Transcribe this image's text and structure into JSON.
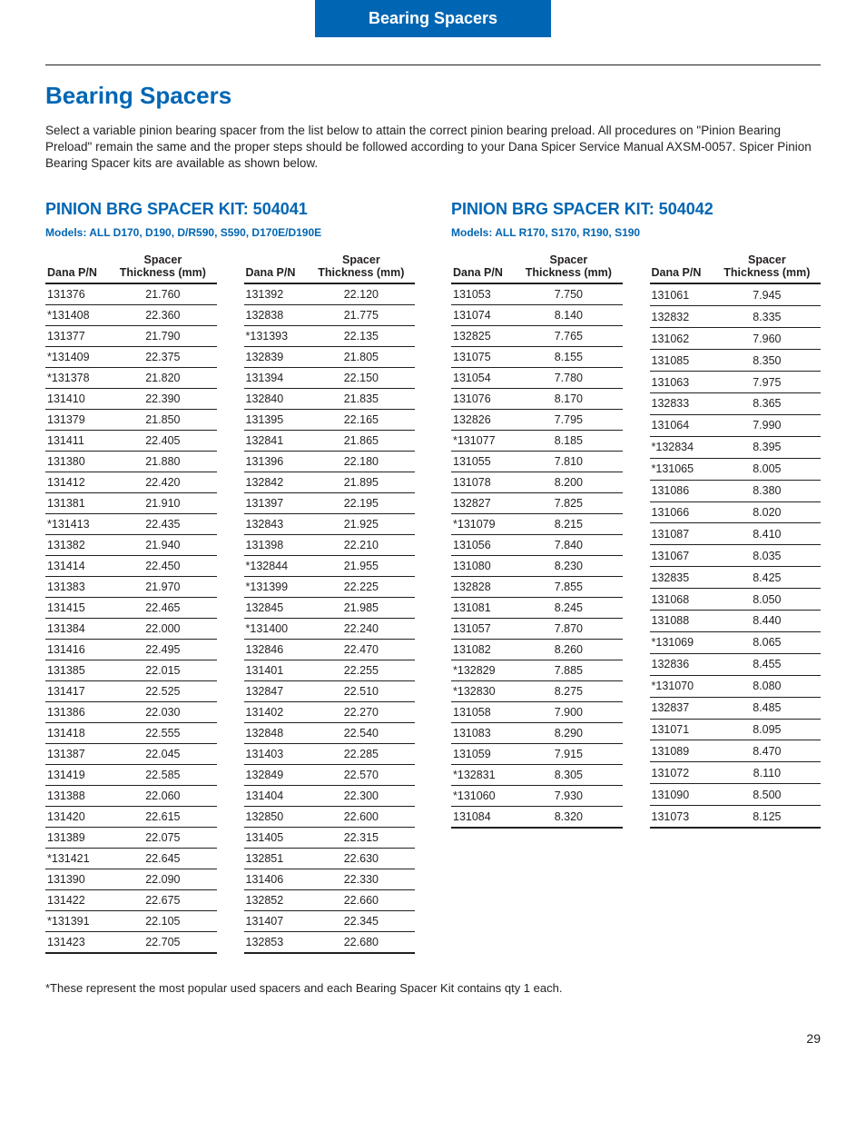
{
  "banner": "Bearing Spacers",
  "title": "Bearing Spacers",
  "intro": "Select a variable pinion bearing spacer from the list below to attain the correct pinion bearing preload. All procedures on \"Pinion Bearing Preload\" remain the same and the proper steps should be followed according to your Dana Spicer Service Manual AXSM-0057. Spicer Pinion Bearing Spacer kits are available as shown below.",
  "col_hdr_pn": "Dana P/N",
  "col_hdr_thk": "Spacer\nThickness (mm)",
  "footnote": "*These represent the most popular used spacers and each Bearing Spacer Kit contains qty 1 each.",
  "pagenum": "29",
  "kits": [
    {
      "heading": "PINION BRG SPACER KIT: 504041",
      "models": "Models: ALL D170, D190, D/R590, S590, D170E/D190E",
      "columns": [
        [
          [
            "131376",
            "21.760"
          ],
          [
            "*131408",
            "22.360"
          ],
          [
            "131377",
            "21.790"
          ],
          [
            "*131409",
            "22.375"
          ],
          [
            "*131378",
            "21.820"
          ],
          [
            "131410",
            "22.390"
          ],
          [
            "131379",
            "21.850"
          ],
          [
            "131411",
            "22.405"
          ],
          [
            "131380",
            "21.880"
          ],
          [
            "131412",
            "22.420"
          ],
          [
            "131381",
            "21.910"
          ],
          [
            "*131413",
            "22.435"
          ],
          [
            "131382",
            "21.940"
          ],
          [
            "131414",
            "22.450"
          ],
          [
            "131383",
            "21.970"
          ],
          [
            "131415",
            "22.465"
          ],
          [
            "131384",
            "22.000"
          ],
          [
            "131416",
            "22.495"
          ],
          [
            "131385",
            "22.015"
          ],
          [
            "131417",
            "22.525"
          ],
          [
            "131386",
            "22.030"
          ],
          [
            "131418",
            "22.555"
          ],
          [
            "131387",
            "22.045"
          ],
          [
            "131419",
            "22.585"
          ],
          [
            "131388",
            "22.060"
          ],
          [
            "131420",
            "22.615"
          ],
          [
            "131389",
            "22.075"
          ],
          [
            "*131421",
            "22.645"
          ],
          [
            "131390",
            "22.090"
          ],
          [
            "131422",
            "22.675"
          ],
          [
            "*131391",
            "22.105"
          ],
          [
            "131423",
            "22.705"
          ]
        ],
        [
          [
            "131392",
            "22.120"
          ],
          [
            "132838",
            "21.775"
          ],
          [
            "*131393",
            "22.135"
          ],
          [
            "132839",
            "21.805"
          ],
          [
            "131394",
            "22.150"
          ],
          [
            "132840",
            "21.835"
          ],
          [
            "131395",
            "22.165"
          ],
          [
            "132841",
            "21.865"
          ],
          [
            "131396",
            "22.180"
          ],
          [
            "132842",
            "21.895"
          ],
          [
            "131397",
            "22.195"
          ],
          [
            "132843",
            "21.925"
          ],
          [
            "131398",
            "22.210"
          ],
          [
            "*132844",
            "21.955"
          ],
          [
            "*131399",
            "22.225"
          ],
          [
            "132845",
            "21.985"
          ],
          [
            "*131400",
            "22.240"
          ],
          [
            "132846",
            "22.470"
          ],
          [
            "131401",
            "22.255"
          ],
          [
            "132847",
            "22.510"
          ],
          [
            "131402",
            "22.270"
          ],
          [
            "132848",
            "22.540"
          ],
          [
            "131403",
            "22.285"
          ],
          [
            "132849",
            "22.570"
          ],
          [
            "131404",
            "22.300"
          ],
          [
            "132850",
            "22.600"
          ],
          [
            "131405",
            "22.315"
          ],
          [
            "132851",
            "22.630"
          ],
          [
            "131406",
            "22.330"
          ],
          [
            "132852",
            "22.660"
          ],
          [
            "131407",
            "22.345"
          ],
          [
            "132853",
            "22.680"
          ]
        ]
      ]
    },
    {
      "heading": "PINION BRG SPACER KIT: 504042",
      "models": "Models: ALL R170, S170, R190, S190",
      "columns": [
        [
          [
            "131053",
            "7.750"
          ],
          [
            "131074",
            "8.140"
          ],
          [
            "132825",
            "7.765"
          ],
          [
            "131075",
            "8.155"
          ],
          [
            "131054",
            "7.780"
          ],
          [
            "131076",
            "8.170"
          ],
          [
            "132826",
            "7.795"
          ],
          [
            "*131077",
            "8.185"
          ],
          [
            "131055",
            "7.810"
          ],
          [
            "131078",
            "8.200"
          ],
          [
            "132827",
            "7.825"
          ],
          [
            "*131079",
            "8.215"
          ],
          [
            "131056",
            "7.840"
          ],
          [
            "131080",
            "8.230"
          ],
          [
            "132828",
            "7.855"
          ],
          [
            "131081",
            "8.245"
          ],
          [
            "131057",
            "7.870"
          ],
          [
            "131082",
            "8.260"
          ],
          [
            "*132829",
            "7.885"
          ],
          [
            "*132830",
            "8.275"
          ],
          [
            "131058",
            "7.900"
          ],
          [
            "131083",
            "8.290"
          ],
          [
            "131059",
            "7.915"
          ],
          [
            "*132831",
            "8.305"
          ],
          [
            "*131060",
            "7.930"
          ],
          [
            "131084",
            "8.320"
          ]
        ],
        [
          [
            "131061",
            "7.945"
          ],
          [
            "132832",
            "8.335"
          ],
          [
            "131062",
            "7.960"
          ],
          [
            "131085",
            "8.350"
          ],
          [
            "131063",
            "7.975"
          ],
          [
            "132833",
            "8.365"
          ],
          [
            "131064",
            "7.990"
          ],
          [
            "*132834",
            "8.395"
          ],
          [
            "*131065",
            "8.005"
          ],
          [
            "131086",
            "8.380"
          ],
          [
            "131066",
            "8.020"
          ],
          [
            "131087",
            "8.410"
          ],
          [
            "131067",
            "8.035"
          ],
          [
            "132835",
            "8.425"
          ],
          [
            "131068",
            "8.050"
          ],
          [
            "131088",
            "8.440"
          ],
          [
            "*131069",
            "8.065"
          ],
          [
            "132836",
            "8.455"
          ],
          [
            "*131070",
            "8.080"
          ],
          [
            "132837",
            "8.485"
          ],
          [
            "131071",
            "8.095"
          ],
          [
            "131089",
            "8.470"
          ],
          [
            "131072",
            "8.110"
          ],
          [
            "131090",
            "8.500"
          ],
          [
            "131073",
            "8.125"
          ]
        ]
      ]
    }
  ]
}
